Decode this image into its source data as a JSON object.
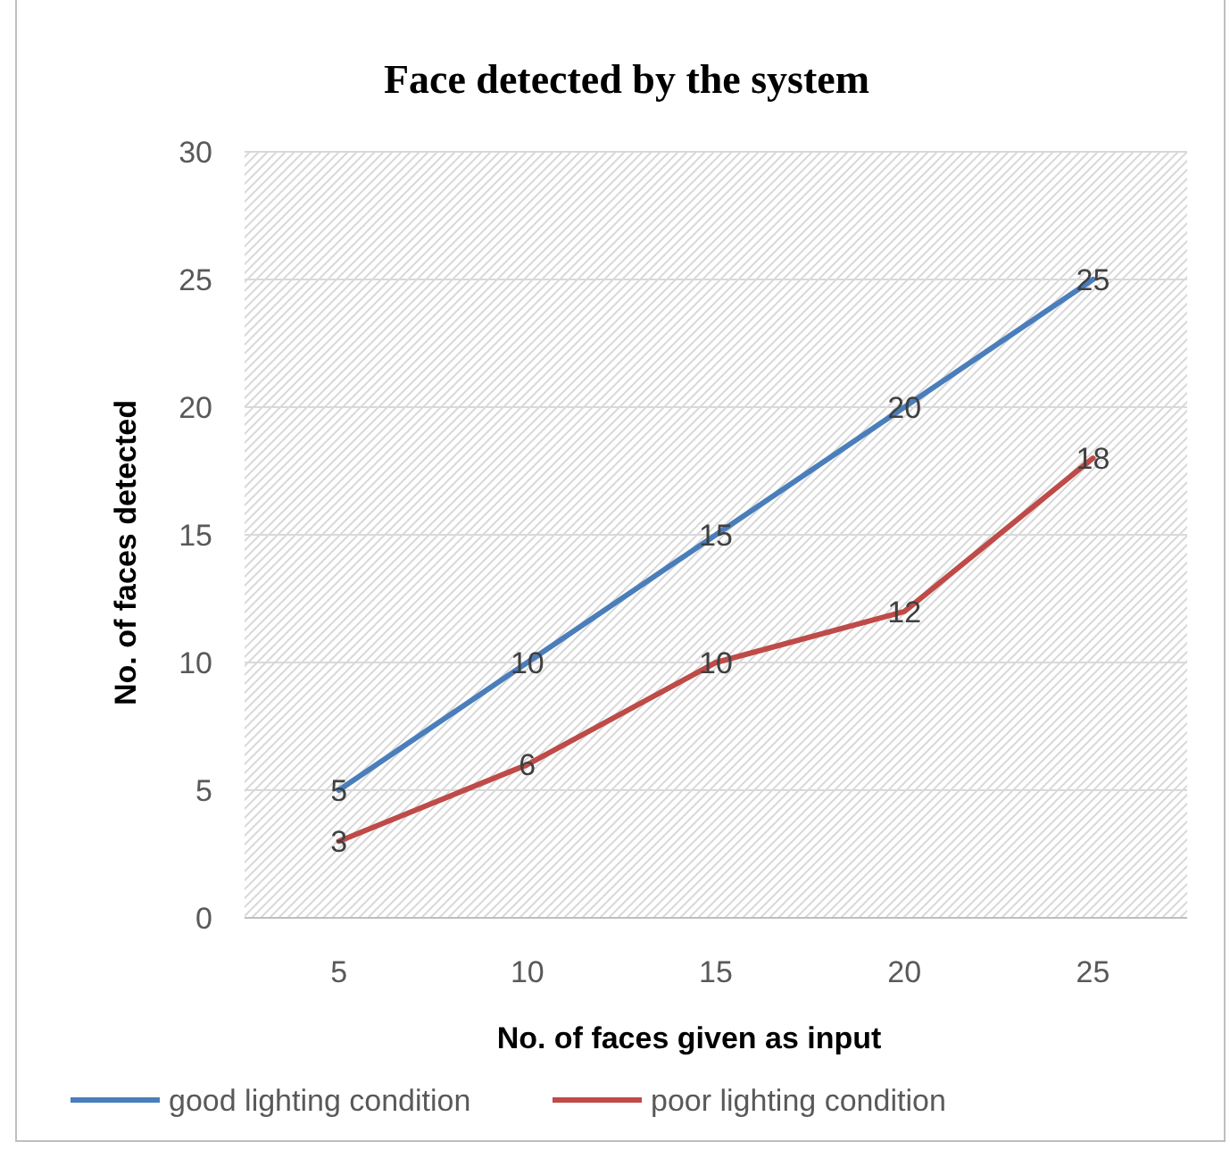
{
  "chart_data": {
    "type": "line",
    "title": "Face detected by the system",
    "xlabel": "No. of faces given as input",
    "ylabel": "No. of faces detected",
    "categories": [
      "5",
      "10",
      "15",
      "20",
      "25"
    ],
    "series": [
      {
        "name": "good lighting condition",
        "color": "#4a7ebb",
        "values": [
          5,
          10,
          15,
          20,
          25
        ]
      },
      {
        "name": "poor lighting condition",
        "color": "#be4b48",
        "values": [
          3,
          6,
          10,
          12,
          18
        ]
      }
    ],
    "ylim": [
      0,
      30
    ],
    "yticks": [
      0,
      5,
      10,
      15,
      20,
      25,
      30
    ],
    "grid": "y",
    "legend": "bottom",
    "data_labels": true,
    "marker": "none",
    "line_style": "solid"
  }
}
